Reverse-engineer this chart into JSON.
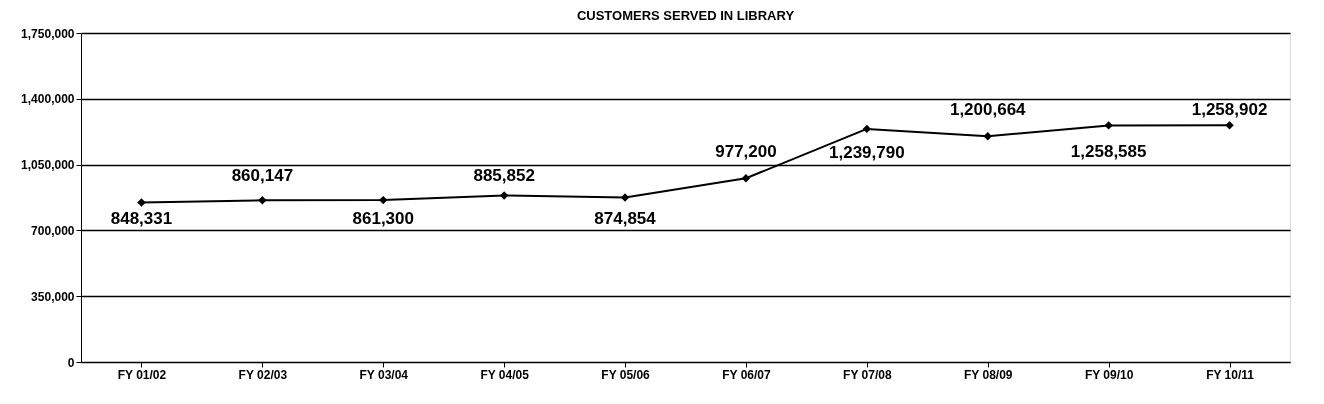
{
  "chart_data": {
    "type": "line",
    "title": "CUSTOMERS SERVED IN LIBRARY",
    "categories": [
      "FY 01/02",
      "FY 02/03",
      "FY 03/04",
      "FY 04/05",
      "FY 05/06",
      "FY 06/07",
      "FY 07/08",
      "FY 08/09",
      "FY 09/10",
      "FY 10/11"
    ],
    "series": [
      {
        "color": "#000000",
        "values": [
          848331,
          860147,
          861300,
          885852,
          874854,
          977200,
          1239790,
          1200664,
          1258585,
          1258902
        ],
        "value_labels": [
          "848,331",
          "860,147",
          "861,300",
          "885,852",
          "874,854",
          "977,200",
          "1,239,790",
          "1,200,664",
          "1,258,585",
          "1,258,902"
        ]
      }
    ],
    "ylim": [
      0,
      1750000
    ],
    "yticks": [
      0,
      {
        "value": 350000,
        "label": "350,000"
      },
      {
        "value": 700000,
        "label": "700,000"
      },
      {
        "value": 1050000,
        "label": "1,050,000"
      },
      {
        "value": 1400000,
        "label": "1,400,000"
      },
      {
        "value": 1750000,
        "label": "1,750,000"
      }
    ],
    "grid": "y",
    "marker": "diamond",
    "line_style": "solid"
  }
}
